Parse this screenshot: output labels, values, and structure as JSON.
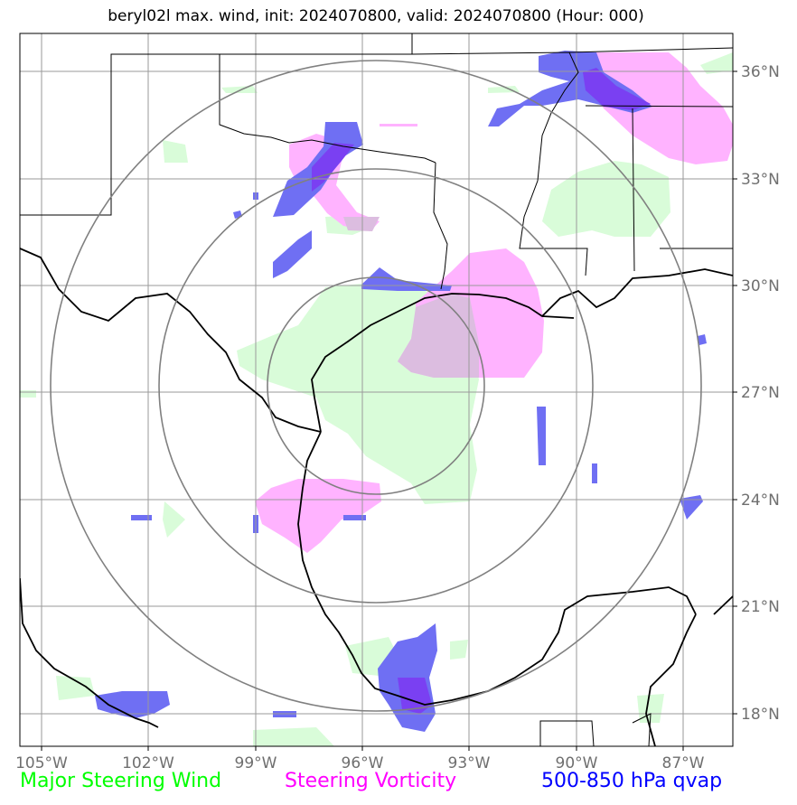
{
  "title": "beryl02l max. wind, init: 2024070800, valid: 2024070800 (Hour: 000)",
  "lon_ticks": [
    "105°W",
    "102°W",
    "99°W",
    "96°W",
    "93°W",
    "90°W",
    "87°W"
  ],
  "lat_ticks": [
    "36°N",
    "33°N",
    "30°N",
    "27°N",
    "24°N",
    "21°N",
    "18°N"
  ],
  "map_extent": {
    "lon": [
      -105,
      -85
    ],
    "lat": [
      17,
      37
    ]
  },
  "storm_center": {
    "lon": -95.9,
    "lat": 27.3
  },
  "range_rings_deg": [
    3,
    6,
    9
  ],
  "legend": [
    {
      "label": "Major Steering Wind",
      "color": "#00ff00"
    },
    {
      "label": "Steering Vorticity",
      "color": "#ff00ff"
    },
    {
      "label": "500-850 hPa qvap",
      "color": "#0000ff"
    }
  ],
  "colors": {
    "wind_fill": "#d9fcd9",
    "vorticity_fill": "#ffb3ff",
    "qvap_fill": "#6f6ff3",
    "qvap_dark": "#6f3cf0",
    "grid": "#9a9a9a",
    "ring": "#808080"
  }
}
